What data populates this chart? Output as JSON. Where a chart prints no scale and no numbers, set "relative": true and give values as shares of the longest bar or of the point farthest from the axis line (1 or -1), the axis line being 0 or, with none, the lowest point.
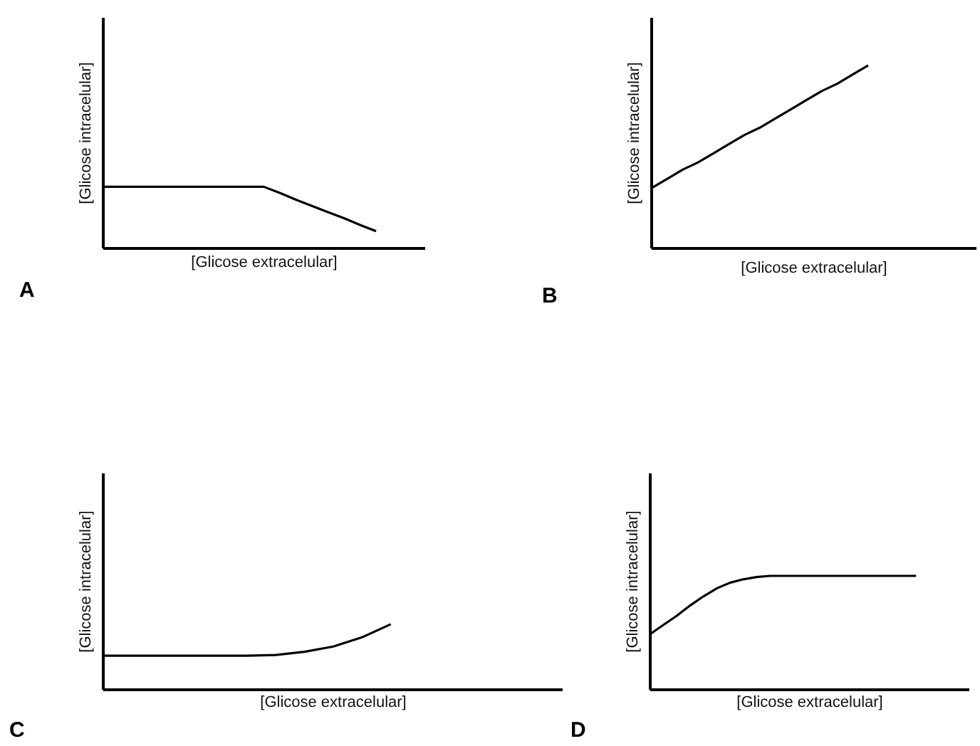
{
  "chart_data": [
    {
      "type": "line",
      "relative": true,
      "title": "A",
      "xlabel": "[Glicose extracelular]",
      "ylabel": "[Glicose intracelular]",
      "color": "#000000",
      "categories": [
        null,
        null,
        null,
        null,
        null,
        null,
        null,
        null,
        null,
        null,
        null,
        null,
        null,
        null,
        null,
        null,
        null,
        null
      ],
      "values": [
        1,
        1,
        1,
        1,
        1,
        1,
        1,
        1,
        1,
        1,
        1,
        0.9,
        0.79,
        0.69,
        0.59,
        0.49,
        0.38,
        0.28
      ]
    },
    {
      "type": "line",
      "relative": true,
      "title": "B",
      "xlabel": "[Glicose extracelular]",
      "ylabel": "[Glicose intracelular]",
      "color": "#000000",
      "categories": [
        null,
        null,
        null,
        null,
        null,
        null,
        null,
        null,
        null,
        null,
        null,
        null,
        null,
        null,
        null
      ],
      "values": [
        0.33,
        0.38,
        0.43,
        0.47,
        0.52,
        0.57,
        0.62,
        0.66,
        0.71,
        0.76,
        0.81,
        0.86,
        0.9,
        0.95,
        1
      ]
    },
    {
      "type": "line",
      "relative": true,
      "title": "C",
      "xlabel": "[Glicose extracelular]",
      "ylabel": "[Glicose intracelular]",
      "color": "#000000",
      "categories": [
        null,
        null,
        null,
        null,
        null,
        null,
        null,
        null,
        null,
        null,
        null
      ],
      "values": [
        0.52,
        0.52,
        0.52,
        0.52,
        0.52,
        0.52,
        0.53,
        0.58,
        0.66,
        0.8,
        1
      ]
    },
    {
      "type": "line",
      "relative": true,
      "title": "D",
      "xlabel": "[Glicose extracelular]",
      "ylabel": "[Glicose intracelular]",
      "color": "#000000",
      "categories": [
        null,
        null,
        null,
        null,
        null,
        null,
        null,
        null,
        null,
        null,
        null,
        null,
        null,
        null,
        null,
        null,
        null,
        null,
        null,
        null,
        null
      ],
      "values": [
        0.49,
        0.57,
        0.65,
        0.74,
        0.82,
        0.89,
        0.94,
        0.97,
        0.99,
        1,
        1,
        1,
        1,
        1,
        1,
        1,
        1,
        1,
        1,
        1,
        1
      ]
    }
  ]
}
